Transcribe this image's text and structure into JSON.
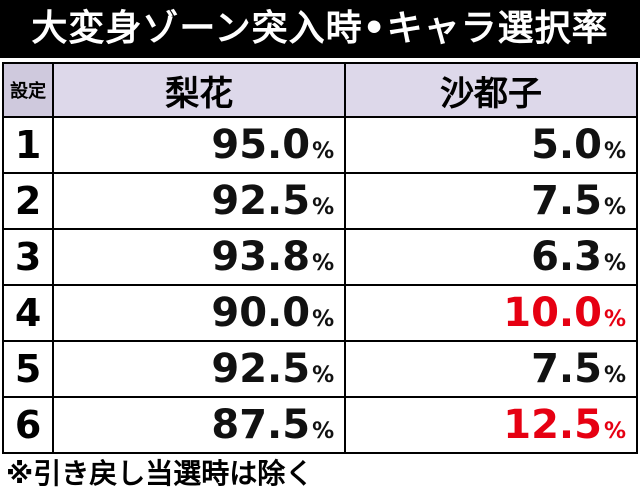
{
  "title": "大変身ゾーン突入時•キャラ選択率",
  "table": {
    "headers": {
      "setting": "設定",
      "col1": "梨花",
      "col2": "沙都子"
    },
    "rows": [
      {
        "setting": "1",
        "col1": "95.0",
        "col2": "5.0",
        "col2_highlight": false
      },
      {
        "setting": "2",
        "col1": "92.5",
        "col2": "7.5",
        "col2_highlight": false
      },
      {
        "setting": "3",
        "col1": "93.8",
        "col2": "6.3",
        "col2_highlight": false
      },
      {
        "setting": "4",
        "col1": "90.0",
        "col2": "10.0",
        "col2_highlight": true
      },
      {
        "setting": "5",
        "col1": "92.5",
        "col2": "7.5",
        "col2_highlight": false
      },
      {
        "setting": "6",
        "col1": "87.5",
        "col2": "12.5",
        "col2_highlight": true
      }
    ],
    "percent_sign": "%"
  },
  "footnote": "※引き戻し当選時は除く",
  "colors": {
    "highlight": "#e60012",
    "header_bg": "#ddd8ea",
    "title_bg": "#000000"
  }
}
